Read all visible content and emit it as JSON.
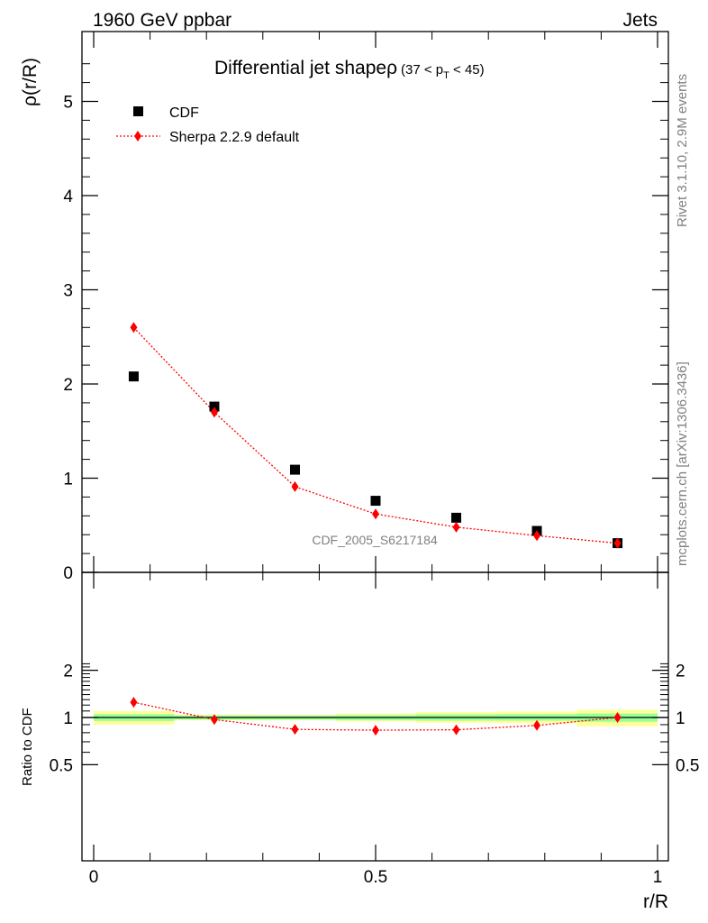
{
  "header": {
    "left": "1960 GeV ppbar",
    "right": "Jets"
  },
  "side_texts": {
    "rivet": "Rivet 3.1.10,  2.9M events",
    "mcplots": "mcplots.cern.ch [arXiv:1306.3436]"
  },
  "watermark": "CDF_2005_S6217184",
  "chart_data": [
    {
      "type": "scatter",
      "title_main": "Differential jet shape",
      "title_rho": "ρ",
      "title_range": "(37 < p",
      "title_sub": "T",
      "title_range_end": " < 45)",
      "ylabel": "ρ(r/R)",
      "xlim": [
        0,
        1
      ],
      "ylim": [
        0,
        5.75
      ],
      "yticks": [
        "0",
        "1",
        "2",
        "3",
        "4",
        "5"
      ],
      "legend_position": "top-left",
      "series": [
        {
          "name": "CDF",
          "color": "#000000",
          "marker": "square",
          "x": [
            0.071,
            0.214,
            0.357,
            0.5,
            0.643,
            0.786,
            0.929
          ],
          "y": [
            2.08,
            1.76,
            1.09,
            0.76,
            0.58,
            0.44,
            0.31
          ]
        },
        {
          "name": "Sherpa 2.2.9 default",
          "color": "#ff0000",
          "marker": "diamond",
          "line": "dotted",
          "x": [
            0.071,
            0.214,
            0.357,
            0.5,
            0.643,
            0.786,
            0.929
          ],
          "y": [
            2.6,
            1.7,
            0.91,
            0.62,
            0.48,
            0.39,
            0.31
          ]
        }
      ]
    },
    {
      "type": "scatter",
      "ylabel": "Ratio to CDF",
      "xlabel": "r/R",
      "xlim": [
        0,
        1
      ],
      "ylim": [
        0.4,
        2.3
      ],
      "yticks": [
        "0.5",
        "1",
        "2"
      ],
      "ytick_values": [
        0.5,
        1,
        2
      ],
      "xticks": [
        "0",
        "0.5",
        "1"
      ],
      "xtick_values": [
        0,
        0.5,
        1
      ],
      "band_colors": {
        "outer": "#ffff99",
        "inner": "#99ff99"
      },
      "bands": [
        {
          "x": [
            0.0,
            0.143
          ],
          "inner": [
            0.95,
            1.05
          ],
          "outer": [
            0.9,
            1.1
          ]
        },
        {
          "x": [
            0.143,
            0.286
          ],
          "inner": [
            0.97,
            1.03
          ],
          "outer": [
            0.96,
            1.045
          ]
        },
        {
          "x": [
            0.286,
            0.429
          ],
          "inner": [
            0.97,
            1.03
          ],
          "outer": [
            0.96,
            1.04
          ]
        },
        {
          "x": [
            0.429,
            0.571
          ],
          "inner": [
            0.96,
            1.035
          ],
          "outer": [
            0.945,
            1.06
          ]
        },
        {
          "x": [
            0.571,
            0.714
          ],
          "inner": [
            0.955,
            1.045
          ],
          "outer": [
            0.925,
            1.08
          ]
        },
        {
          "x": [
            0.714,
            0.857
          ],
          "inner": [
            0.955,
            1.05
          ],
          "outer": [
            0.92,
            1.09
          ]
        },
        {
          "x": [
            0.857,
            1.0
          ],
          "inner": [
            0.94,
            1.06
          ],
          "outer": [
            0.88,
            1.12
          ]
        }
      ],
      "series": [
        {
          "name": "Sherpa 2.2.9 default",
          "color": "#ff0000",
          "x": [
            0.071,
            0.214,
            0.357,
            0.5,
            0.643,
            0.786,
            0.929
          ],
          "y": [
            1.25,
            0.97,
            0.84,
            0.83,
            0.835,
            0.89,
            1.0
          ]
        }
      ]
    }
  ]
}
